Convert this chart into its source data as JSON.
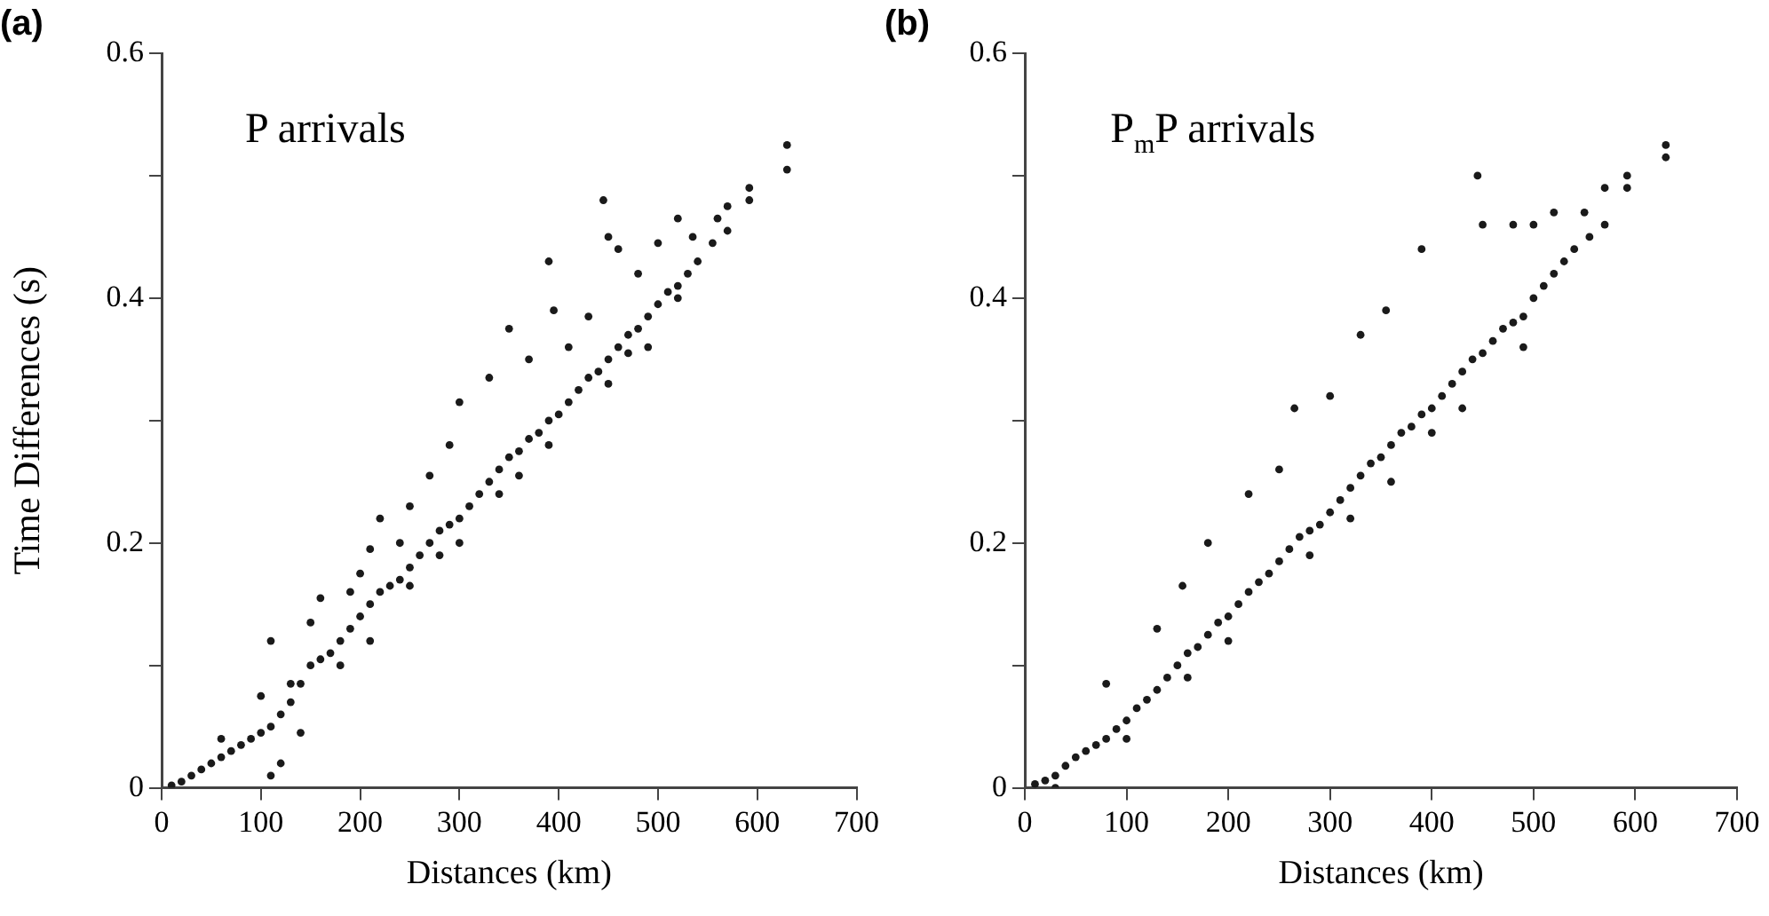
{
  "chart_data": [
    {
      "type": "scatter",
      "title": "(a)",
      "xlabel": "Distances (km)",
      "ylabel": "Time Differences (s)",
      "annotations": [
        "P arrivals"
      ],
      "color": "#1a1a1a",
      "marker": "circle",
      "xlim": [
        0,
        700
      ],
      "xticks": [
        0,
        100,
        200,
        300,
        400,
        500,
        600,
        700
      ],
      "ylim": [
        0,
        0.6
      ],
      "yticks": [
        0,
        {
          "value": 0.1,
          "label": null
        },
        0.2,
        {
          "value": 0.3,
          "label": null
        },
        0.4,
        {
          "value": 0.5,
          "label": null
        },
        0.6
      ],
      "x": [
        10,
        20,
        30,
        40,
        50,
        60,
        70,
        80,
        90,
        100,
        110,
        120,
        130,
        140,
        150,
        160,
        170,
        180,
        190,
        200,
        210,
        220,
        230,
        240,
        250,
        260,
        270,
        280,
        290,
        300,
        310,
        320,
        330,
        340,
        350,
        360,
        370,
        380,
        390,
        400,
        410,
        420,
        430,
        440,
        450,
        460,
        470,
        480,
        490,
        500,
        510,
        520,
        530,
        540,
        555,
        570,
        592,
        592,
        630,
        630,
        60,
        100,
        110,
        130,
        150,
        160,
        190,
        200,
        210,
        220,
        240,
        250,
        270,
        290,
        300,
        330,
        350,
        370,
        390,
        395,
        410,
        430,
        445,
        450,
        460,
        480,
        500,
        520,
        535,
        560,
        570,
        110,
        120,
        140,
        180,
        210,
        250,
        280,
        300,
        340,
        360,
        390,
        450,
        470,
        490,
        520
      ],
      "values": [
        0.002,
        0.005,
        0.01,
        0.015,
        0.02,
        0.025,
        0.03,
        0.035,
        0.04,
        0.045,
        0.05,
        0.06,
        0.07,
        0.085,
        0.1,
        0.105,
        0.11,
        0.12,
        0.13,
        0.14,
        0.15,
        0.16,
        0.165,
        0.17,
        0.18,
        0.19,
        0.2,
        0.21,
        0.215,
        0.22,
        0.23,
        0.24,
        0.25,
        0.26,
        0.27,
        0.275,
        0.285,
        0.29,
        0.3,
        0.305,
        0.315,
        0.325,
        0.335,
        0.34,
        0.35,
        0.36,
        0.37,
        0.375,
        0.385,
        0.395,
        0.405,
        0.41,
        0.42,
        0.43,
        0.445,
        0.455,
        0.48,
        0.49,
        0.505,
        0.525,
        0.04,
        0.075,
        0.12,
        0.085,
        0.135,
        0.155,
        0.16,
        0.175,
        0.195,
        0.22,
        0.2,
        0.23,
        0.255,
        0.28,
        0.315,
        0.335,
        0.375,
        0.35,
        0.43,
        0.39,
        0.36,
        0.385,
        0.48,
        0.45,
        0.44,
        0.42,
        0.445,
        0.465,
        0.45,
        0.465,
        0.475,
        0.01,
        0.02,
        0.045,
        0.1,
        0.12,
        0.165,
        0.19,
        0.2,
        0.24,
        0.255,
        0.28,
        0.33,
        0.355,
        0.36,
        0.4
      ]
    },
    {
      "type": "scatter",
      "title": "(b)",
      "xlabel": "Distances (km)",
      "annotations": [
        "P$_{m}$P arrivals"
      ],
      "color": "#1a1a1a",
      "marker": "circle",
      "xlim": [
        0,
        700
      ],
      "xticks": [
        0,
        100,
        200,
        300,
        400,
        500,
        600,
        700
      ],
      "ylim": [
        0,
        0.6
      ],
      "yticks": [
        0,
        {
          "value": 0.1,
          "label": null
        },
        0.2,
        {
          "value": 0.3,
          "label": null
        },
        0.4,
        {
          "value": 0.5,
          "label": null
        },
        0.6
      ],
      "x": [
        10,
        20,
        30,
        40,
        50,
        60,
        70,
        80,
        90,
        100,
        110,
        120,
        130,
        140,
        150,
        160,
        170,
        180,
        190,
        200,
        210,
        220,
        230,
        240,
        250,
        260,
        270,
        280,
        290,
        300,
        310,
        320,
        330,
        340,
        350,
        360,
        370,
        380,
        390,
        400,
        410,
        420,
        430,
        440,
        450,
        460,
        470,
        480,
        490,
        500,
        510,
        520,
        530,
        540,
        555,
        570,
        592,
        592,
        630,
        630,
        445,
        390,
        355,
        330,
        265,
        300,
        250,
        220,
        180,
        155,
        80,
        130,
        450,
        480,
        500,
        520,
        550,
        570,
        30,
        100,
        160,
        200,
        280,
        320,
        360,
        400,
        430,
        490
      ],
      "values": [
        0.003,
        0.006,
        0.01,
        0.018,
        0.025,
        0.03,
        0.035,
        0.04,
        0.048,
        0.055,
        0.065,
        0.072,
        0.08,
        0.09,
        0.1,
        0.11,
        0.115,
        0.125,
        0.135,
        0.14,
        0.15,
        0.16,
        0.168,
        0.175,
        0.185,
        0.195,
        0.205,
        0.21,
        0.215,
        0.225,
        0.235,
        0.245,
        0.255,
        0.265,
        0.27,
        0.28,
        0.29,
        0.295,
        0.305,
        0.31,
        0.32,
        0.33,
        0.34,
        0.35,
        0.355,
        0.365,
        0.375,
        0.38,
        0.385,
        0.4,
        0.41,
        0.42,
        0.43,
        0.44,
        0.45,
        0.46,
        0.49,
        0.5,
        0.515,
        0.525,
        0.5,
        0.44,
        0.39,
        0.37,
        0.31,
        0.32,
        0.26,
        0.24,
        0.2,
        0.165,
        0.085,
        0.13,
        0.46,
        0.46,
        0.46,
        0.47,
        0.47,
        0.49,
        0.0,
        0.04,
        0.09,
        0.12,
        0.19,
        0.22,
        0.25,
        0.29,
        0.31,
        0.36
      ]
    }
  ]
}
